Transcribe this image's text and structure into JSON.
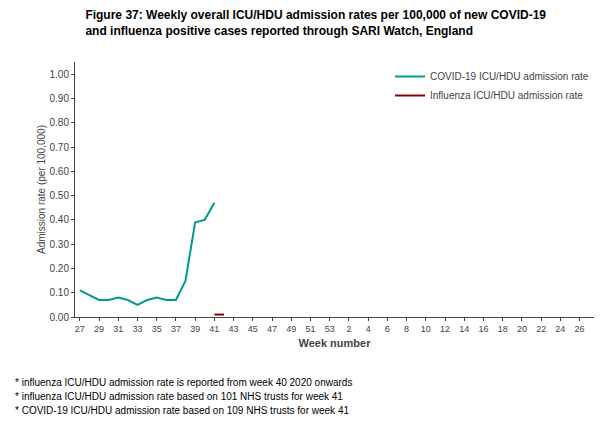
{
  "chart_data": {
    "type": "line",
    "title": [
      "Figure 37: Weekly overall ICU/HDU admission rates per 100,000 of new COVID-19",
      "and influenza positive cases reported through SARI Watch, England"
    ],
    "x_label": "Week number",
    "y_label": "Admission rate (per 100,000)",
    "categories": [
      "27",
      null,
      "29",
      null,
      "31",
      null,
      "33",
      null,
      "35",
      null,
      "37",
      null,
      "39",
      null,
      "41",
      null,
      "43",
      null,
      "45",
      null,
      "47",
      null,
      "49",
      null,
      "51",
      null,
      "53",
      null,
      "2",
      null,
      "4",
      null,
      "6",
      null,
      "8",
      null,
      "10",
      null,
      "12",
      null,
      "14",
      null,
      "16",
      null,
      "18",
      null,
      "20",
      null,
      "22",
      null,
      "24",
      null,
      "26",
      null
    ],
    "series": [
      {
        "name": "COVID-19 ICU/HDU admission rate",
        "color": "#009B8D",
        "values": [
          0.11,
          0.09,
          0.07,
          0.07,
          0.08,
          0.07,
          0.05,
          0.07,
          0.08,
          0.07,
          0.07,
          0.15,
          0.39,
          0.4,
          0.47,
          null,
          null,
          null,
          null,
          null,
          null,
          null,
          null,
          null,
          null,
          null,
          null,
          null,
          null,
          null,
          null,
          null,
          null,
          null,
          null,
          null,
          null,
          null,
          null,
          null,
          null,
          null,
          null,
          null,
          null,
          null,
          null,
          null,
          null,
          null,
          null,
          null,
          null,
          null
        ]
      },
      {
        "name": "Influenza ICU/HDU admission rate",
        "color": "#8B0000",
        "values": [
          null,
          null,
          null,
          null,
          null,
          null,
          null,
          null,
          null,
          null,
          null,
          null,
          null,
          null,
          0.01,
          0.01,
          null,
          null,
          null,
          null,
          null,
          null,
          null,
          null,
          null,
          null,
          null,
          null,
          null,
          null,
          null,
          null,
          null,
          null,
          null,
          null,
          null,
          null,
          null,
          null,
          null,
          null,
          null,
          null,
          null,
          null,
          null,
          null,
          null,
          null,
          null,
          null,
          null,
          null
        ]
      }
    ],
    "ylim": [
      0.0,
      1.05
    ],
    "yticks": [
      {
        "value": 0.0,
        "label": "0.00"
      },
      {
        "value": 0.1,
        "label": "0.10"
      },
      {
        "value": 0.2,
        "label": "0.20"
      },
      {
        "value": 0.3,
        "label": "0.30"
      },
      {
        "value": 0.4,
        "label": "0.40"
      },
      {
        "value": 0.5,
        "label": "0.50"
      },
      {
        "value": 0.6,
        "label": "0.60"
      },
      {
        "value": 0.7,
        "label": "0.70"
      },
      {
        "value": 0.8,
        "label": "0.80"
      },
      {
        "value": 0.9,
        "label": "0.90"
      },
      {
        "value": 1.0,
        "label": "1.00"
      }
    ],
    "annotations": [
      "* influenza ICU/HDU admission rate is reported from week 40 2020 onwards",
      "* influenza ICU/HDU admission rate based on 101 NHS trusts for week 41",
      "* COVID-19 ICU/HDU admission rate based on 109 NHS trusts for week 41"
    ],
    "grid": false,
    "legend": "upper right"
  }
}
